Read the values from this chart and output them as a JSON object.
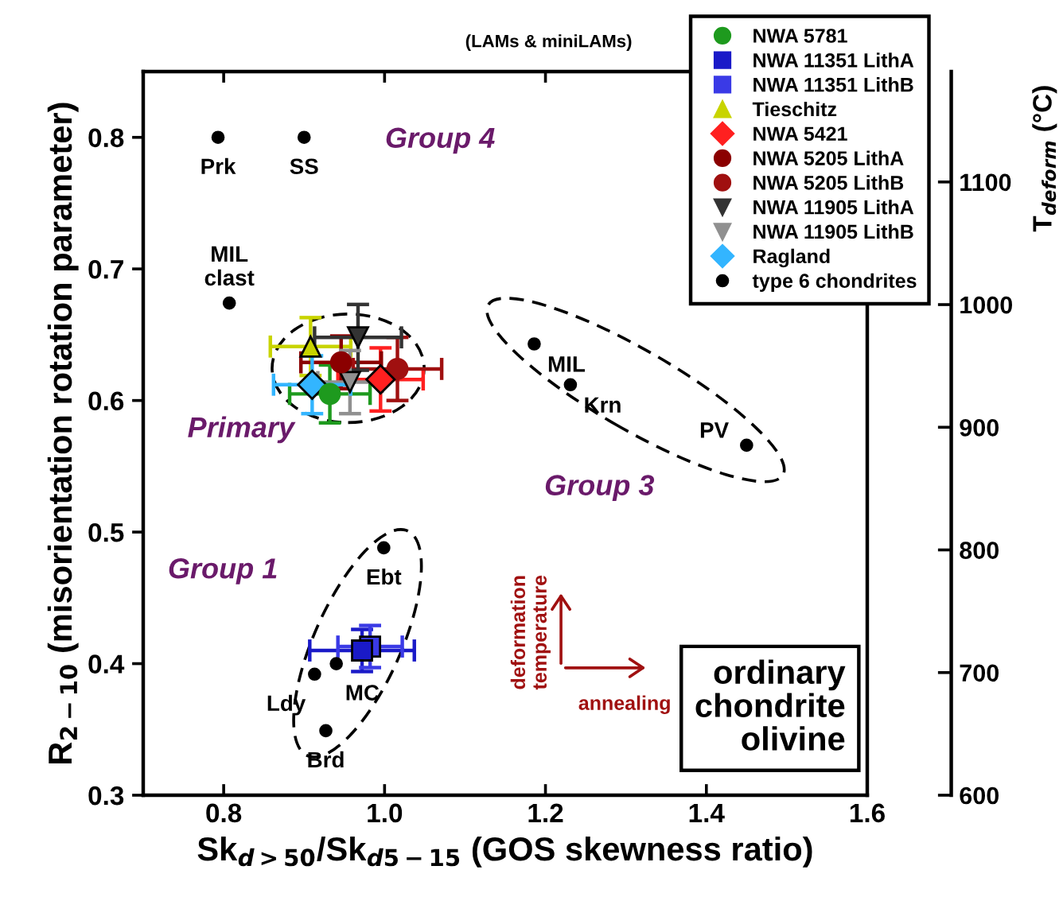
{
  "chart_data": {
    "type": "scatter",
    "xlabel": "Sk$_{d>50}$/Sk$_{d5−15}$ (GOS skewness ratio)",
    "ylabel": "R$_{2−10}$ (misorientation rotation parameter)",
    "y2label": "T$_{deform}$ (°C)",
    "xlim": [
      0.7,
      1.6
    ],
    "xticks": [
      0.8,
      {
        "value": 1.0,
        "label": "1.0"
      },
      1.2,
      1.4,
      1.6
    ],
    "ylim": [
      0.3,
      0.85
    ],
    "yticks": [
      0.3,
      0.4,
      0.5,
      0.6,
      0.7,
      0.8
    ],
    "y2lim": [
      600,
      1190
    ],
    "y2ticks": [
      600,
      700,
      800,
      900,
      1000,
      1100
    ],
    "grid": false,
    "legend": "top right",
    "series": [
      {
        "name": "NWA 5781",
        "color": "#1e9a1e",
        "marker": "circle",
        "x": [
          0.932
        ],
        "values": [
          0.605
        ],
        "errors": [
          0.022
        ],
        "xerrors": [
          0.05
        ]
      },
      {
        "name": "NWA 11351 LithA",
        "color": "#1a1ac8",
        "marker": "square",
        "x": [
          0.972
        ],
        "values": [
          0.41
        ],
        "errors": [
          0.016
        ],
        "xerrors": [
          0.065
        ]
      },
      {
        "name": "NWA 11351 LithB",
        "color": "#3a3ae6",
        "marker": "square",
        "x": [
          0.982
        ],
        "values": [
          0.413
        ],
        "errors": [
          0.016
        ],
        "xerrors": [
          0.04
        ]
      },
      {
        "name": "Tieschitz",
        "color": "#c8d400",
        "marker": "triangle",
        "x": [
          0.908
        ],
        "values": [
          0.641
        ],
        "errors": [
          0.022
        ],
        "xerrors": [
          0.05
        ]
      },
      {
        "name": "NWA 5421",
        "color": "#ff2020",
        "marker": "diamond",
        "x": [
          0.995
        ],
        "values": [
          0.616
        ],
        "errors": [
          0.024
        ],
        "xerrors": [
          0.053
        ]
      },
      {
        "name": "NWA 5205 LithA",
        "color": "#8b0000",
        "marker": "circle",
        "x": [
          0.946
        ],
        "values": [
          0.629
        ],
        "errors": [
          0.02
        ],
        "xerrors": [
          0.05
        ]
      },
      {
        "name": "NWA 5205 LithB",
        "color": "#a01010",
        "marker": "circle",
        "x": [
          1.016
        ],
        "values": [
          0.624
        ],
        "errors": [
          0.024
        ],
        "xerrors": [
          0.055
        ]
      },
      {
        "name": "NWA 11905 LithA",
        "color": "#333333",
        "marker": "triangle_down",
        "x": [
          0.967
        ],
        "values": [
          0.648
        ],
        "errors": [
          0.025
        ],
        "xerrors": [
          0.054
        ]
      },
      {
        "name": "NWA 11905 LithB",
        "color": "#909090",
        "marker": "triangle_down",
        "x": [
          0.957
        ],
        "values": [
          0.614
        ],
        "errors": [
          0.024
        ],
        "xerrors": [
          0.04
        ]
      },
      {
        "name": "Ragland",
        "color": "#33b5ff",
        "marker": "diamond",
        "x": [
          0.91
        ],
        "values": [
          0.612
        ],
        "errors": [
          0.022
        ],
        "xerrors": [
          0.048
        ]
      },
      {
        "name": "type 6 chondrites",
        "color": "#000000",
        "marker": "circle",
        "x": [
          0.793,
          0.9,
          0.807,
          1.186,
          1.231,
          1.45,
          0.999,
          0.913,
          0.94,
          0.927
        ],
        "values": [
          0.8,
          0.8,
          0.674,
          0.643,
          0.612,
          0.566,
          0.488,
          0.392,
          0.4,
          0.349
        ]
      }
    ],
    "annotations": [
      {
        "text": "Prk",
        "x": 0.793,
        "y": 0.8
      },
      {
        "text": "SS",
        "x": 0.9,
        "y": 0.8
      },
      {
        "text": "MIL\nclast",
        "x": 0.807,
        "y": 0.674
      },
      {
        "text": "MIL",
        "x": 1.186,
        "y": 0.643
      },
      {
        "text": "Krn",
        "x": 1.231,
        "y": 0.612
      },
      {
        "text": "PV",
        "x": 1.45,
        "y": 0.566
      },
      {
        "text": "Ebt",
        "x": 0.999,
        "y": 0.488
      },
      {
        "text": "Ldy",
        "x": 0.913,
        "y": 0.392
      },
      {
        "text": "MC",
        "x": 0.94,
        "y": 0.4
      },
      {
        "text": "Brd",
        "x": 0.927,
        "y": 0.349
      },
      "(LAMs & miniLAMs)",
      "Group 4",
      "Primary",
      "Group 3",
      "Group 1",
      "deformation\ntemperature",
      "annealing",
      "ordinary\nchondrite\nolivine"
    ]
  }
}
